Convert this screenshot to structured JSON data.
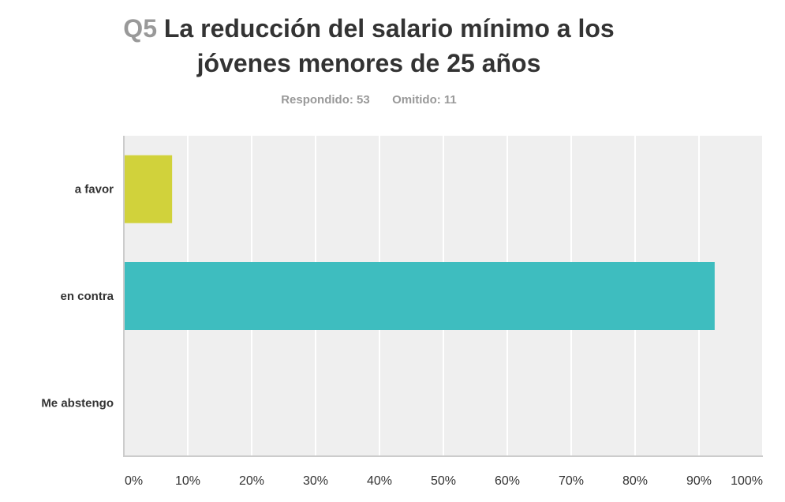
{
  "title": {
    "question_number": "Q5",
    "line1": "La reducción del salario mínimo a los",
    "line2": "jóvenes menores de 25 años"
  },
  "stats": {
    "answered_label": "Respondido:",
    "answered_value": "53",
    "skipped_label": "Omitido:",
    "skipped_value": "11"
  },
  "colors": {
    "plot_background": "#efefef",
    "gridline": "#ffffff",
    "axis": "#cccccc",
    "a_favor": "#d1d23b",
    "en_contra": "#3ebdbf",
    "label_text": "#333333"
  },
  "chart_data": {
    "type": "bar",
    "orientation": "horizontal",
    "categories": [
      "a favor",
      "en contra",
      "Me abstengo"
    ],
    "values": [
      7.55,
      92.45,
      0
    ],
    "value_unit": "%",
    "xlim": [
      0,
      100
    ],
    "xticks": [
      "0%",
      "10%",
      "20%",
      "30%",
      "40%",
      "50%",
      "60%",
      "70%",
      "80%",
      "90%",
      "100%"
    ],
    "grid": true,
    "legend": "none"
  }
}
